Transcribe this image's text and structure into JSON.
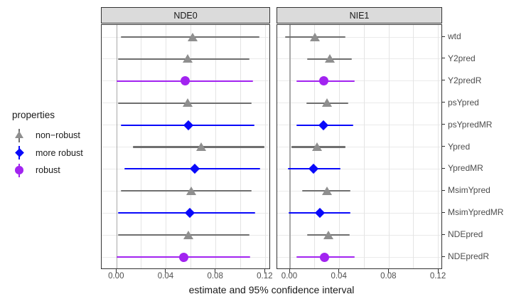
{
  "legend": {
    "title": "properties",
    "entries": [
      {
        "key": "non-robust",
        "label": "non−robust",
        "shape": "triangle",
        "color": "#8F8F8F",
        "line_color": "#6F6F6F"
      },
      {
        "key": "more robust",
        "label": "more robust",
        "shape": "diamond",
        "color": "#0909FA",
        "line_color": "#0909FA"
      },
      {
        "key": "robust",
        "label": "robust",
        "shape": "circle",
        "color": "#A224F0",
        "line_color": "#A224F0"
      }
    ]
  },
  "chart_data": {
    "type": "pointrange",
    "title": "",
    "xlabel": "estimate and 95% confidence interval",
    "ylabel": "",
    "facets": [
      "NDE0",
      "NIE1"
    ],
    "legend_position": "left",
    "grid": "on",
    "xlim": [
      -0.012,
      0.125
    ],
    "xtick_values": [
      0,
      0.04,
      0.08,
      0.12
    ],
    "xtick_labels": [
      "0.00",
      "0.04",
      "0.08",
      "0.12"
    ],
    "grid_x": [
      0,
      0.02,
      0.04,
      0.06,
      0.08,
      0.1,
      0.12
    ],
    "categories": [
      "wtd",
      "Y2pred",
      "Y2predR",
      "psYpred",
      "psYpredMR",
      "Ypred",
      "YpredMR",
      "MsimYpred",
      "MsimYpredMR",
      "NDEpred",
      "NDEpredR"
    ],
    "panels": [
      {
        "facet": "NDE0",
        "points": [
          {
            "label": "wtd",
            "property": "non-robust",
            "estimate": 0.061,
            "lower": 0.003,
            "upper": 0.115
          },
          {
            "label": "Y2pred",
            "property": "non-robust",
            "estimate": 0.057,
            "lower": 0.001,
            "upper": 0.107
          },
          {
            "label": "Y2predR",
            "property": "robust",
            "estimate": 0.055,
            "lower": 0.0,
            "upper": 0.11
          },
          {
            "label": "psYpred",
            "property": "non-robust",
            "estimate": 0.057,
            "lower": 0.001,
            "upper": 0.109
          },
          {
            "label": "psYpredMR",
            "property": "more robust",
            "estimate": 0.058,
            "lower": 0.003,
            "upper": 0.111
          },
          {
            "label": "Ypred",
            "property": "non-robust",
            "estimate": 0.068,
            "lower": 0.013,
            "upper": 0.119
          },
          {
            "label": "YpredMR",
            "property": "more robust",
            "estimate": 0.063,
            "lower": 0.006,
            "upper": 0.116
          },
          {
            "label": "MsimYpred",
            "property": "non-robust",
            "estimate": 0.06,
            "lower": 0.003,
            "upper": 0.109
          },
          {
            "label": "MsimYpredMR",
            "property": "more robust",
            "estimate": 0.059,
            "lower": 0.001,
            "upper": 0.112
          },
          {
            "label": "NDEpred",
            "property": "non-robust",
            "estimate": 0.058,
            "lower": 0.001,
            "upper": 0.107
          },
          {
            "label": "NDEpredR",
            "property": "robust",
            "estimate": 0.054,
            "lower": 0.0,
            "upper": 0.108
          }
        ]
      },
      {
        "facet": "NIE1",
        "points": [
          {
            "label": "wtd",
            "property": "non-robust",
            "estimate": 0.02,
            "lower": -0.004,
            "upper": 0.045
          },
          {
            "label": "Y2pred",
            "property": "non-robust",
            "estimate": 0.032,
            "lower": 0.014,
            "upper": 0.05
          },
          {
            "label": "Y2predR",
            "property": "robust",
            "estimate": 0.027,
            "lower": 0.005,
            "upper": 0.052
          },
          {
            "label": "psYpred",
            "property": "non-robust",
            "estimate": 0.03,
            "lower": 0.013,
            "upper": 0.047
          },
          {
            "label": "psYpredMR",
            "property": "more robust",
            "estimate": 0.027,
            "lower": 0.005,
            "upper": 0.051
          },
          {
            "label": "Ypred",
            "property": "non-robust",
            "estimate": 0.022,
            "lower": 0.001,
            "upper": 0.045
          },
          {
            "label": "YpredMR",
            "property": "more robust",
            "estimate": 0.019,
            "lower": -0.002,
            "upper": 0.041
          },
          {
            "label": "MsimYpred",
            "property": "non-robust",
            "estimate": 0.03,
            "lower": 0.01,
            "upper": 0.049
          },
          {
            "label": "MsimYpredMR",
            "property": "more robust",
            "estimate": 0.024,
            "lower": -0.001,
            "upper": 0.049
          },
          {
            "label": "NDEpred",
            "property": "non-robust",
            "estimate": 0.031,
            "lower": 0.014,
            "upper": 0.048
          },
          {
            "label": "NDEpredR",
            "property": "robust",
            "estimate": 0.028,
            "lower": 0.005,
            "upper": 0.052
          }
        ]
      }
    ]
  }
}
